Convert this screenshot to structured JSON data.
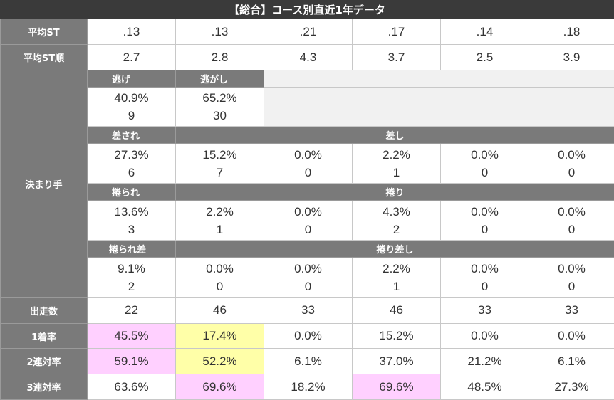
{
  "title": "【総合】コース別直近1年データ",
  "colors": {
    "header_bg": "#3a3a3a",
    "label_bg": "#7a7a7a",
    "pink": "#ffd0ff",
    "yellow": "#ffffa8",
    "empty": "#f1f1f1"
  },
  "avg_st": {
    "label": "平均ST",
    "values": [
      ".13",
      ".13",
      ".21",
      ".17",
      ".14",
      ".18"
    ]
  },
  "avg_st_rank": {
    "label": "平均ST順",
    "values": [
      "2.7",
      "2.8",
      "4.3",
      "3.7",
      "2.5",
      "3.9"
    ]
  },
  "kimarite": {
    "label": "決まり手",
    "nige": {
      "label": "逃げ",
      "pct": "40.9%",
      "count": "9"
    },
    "nigashi": {
      "label": "逃がし",
      "pct": "65.2%",
      "count": "30"
    },
    "sasare": {
      "label": "差され",
      "pct": "27.3%",
      "count": "6"
    },
    "sashi": {
      "label": "差し",
      "cells": [
        {
          "pct": "15.2%",
          "count": "7"
        },
        {
          "pct": "0.0%",
          "count": "0"
        },
        {
          "pct": "2.2%",
          "count": "1"
        },
        {
          "pct": "0.0%",
          "count": "0"
        },
        {
          "pct": "0.0%",
          "count": "0"
        }
      ]
    },
    "makurare": {
      "label": "捲られ",
      "pct": "13.6%",
      "count": "3"
    },
    "makuri": {
      "label": "捲り",
      "cells": [
        {
          "pct": "2.2%",
          "count": "1"
        },
        {
          "pct": "0.0%",
          "count": "0"
        },
        {
          "pct": "4.3%",
          "count": "2"
        },
        {
          "pct": "0.0%",
          "count": "0"
        },
        {
          "pct": "0.0%",
          "count": "0"
        }
      ]
    },
    "makurare_sa": {
      "label": "捲られ差",
      "pct": "9.1%",
      "count": "2"
    },
    "makuri_sashi": {
      "label": "捲り差し",
      "cells": [
        {
          "pct": "0.0%",
          "count": "0"
        },
        {
          "pct": "0.0%",
          "count": "0"
        },
        {
          "pct": "2.2%",
          "count": "1"
        },
        {
          "pct": "0.0%",
          "count": "0"
        },
        {
          "pct": "0.0%",
          "count": "0"
        }
      ]
    }
  },
  "starts": {
    "label": "出走数",
    "values": [
      "22",
      "46",
      "33",
      "46",
      "33",
      "33"
    ]
  },
  "win_rate": {
    "label": "1着率",
    "values": [
      "45.5%",
      "17.4%",
      "0.0%",
      "15.2%",
      "0.0%",
      "0.0%"
    ]
  },
  "top2_rate": {
    "label": "2連対率",
    "values": [
      "59.1%",
      "52.2%",
      "6.1%",
      "37.0%",
      "21.2%",
      "6.1%"
    ]
  },
  "top3_rate": {
    "label": "3連対率",
    "values": [
      "63.6%",
      "69.6%",
      "18.2%",
      "69.6%",
      "48.5%",
      "27.3%"
    ]
  }
}
